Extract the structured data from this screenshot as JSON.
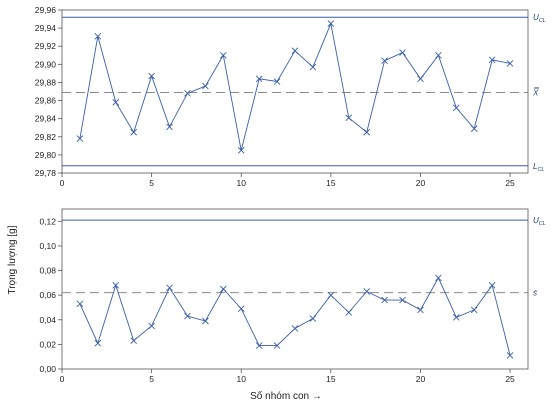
{
  "chart_data": [
    {
      "type": "line",
      "x": [
        1,
        2,
        3,
        4,
        5,
        6,
        7,
        8,
        9,
        10,
        11,
        12,
        13,
        14,
        15,
        16,
        17,
        18,
        19,
        20,
        21,
        22,
        23,
        24,
        25
      ],
      "series": [
        {
          "values": [
            29.818,
            29.931,
            29.858,
            29.825,
            29.887,
            29.831,
            29.868,
            29.876,
            29.91,
            29.805,
            29.884,
            29.881,
            29.915,
            29.897,
            29.945,
            29.841,
            29.825,
            29.904,
            29.913,
            29.884,
            29.91,
            29.852,
            29.829,
            29.905,
            29.901
          ]
        }
      ],
      "limits": [
        {
          "value": 29.952,
          "label": "U",
          "sub": "CL",
          "style": "solid"
        },
        {
          "value": 29.869,
          "label": "X̿",
          "sub": "",
          "style": "dashed"
        },
        {
          "value": 29.788,
          "label": "L",
          "sub": "CL",
          "style": "solid"
        }
      ],
      "xlim": [
        0,
        26
      ],
      "ylim": [
        29.78,
        29.96
      ],
      "xticks": [
        "0",
        "5",
        "10",
        "15",
        "20",
        "25"
      ],
      "yticks": [
        "29,78",
        "29,80",
        "29,82",
        "29,84",
        "29,86",
        "29,88",
        "29,90",
        "29,92",
        "29,94",
        "29,96"
      ],
      "grid": false
    },
    {
      "type": "line",
      "x": [
        1,
        2,
        3,
        4,
        5,
        6,
        7,
        8,
        9,
        10,
        11,
        12,
        13,
        14,
        15,
        16,
        17,
        18,
        19,
        20,
        21,
        22,
        23,
        24,
        25
      ],
      "series": [
        {
          "values": [
            0.053,
            0.021,
            0.068,
            0.023,
            0.035,
            0.066,
            0.043,
            0.039,
            0.065,
            0.049,
            0.019,
            0.019,
            0.033,
            0.041,
            0.06,
            0.046,
            0.063,
            0.056,
            0.056,
            0.048,
            0.074,
            0.042,
            0.048,
            0.068,
            0.011
          ]
        }
      ],
      "limits": [
        {
          "value": 0.121,
          "label": "U",
          "sub": "CL",
          "style": "solid"
        },
        {
          "value": 0.062,
          "label": "s̄",
          "sub": "",
          "style": "dashed"
        }
      ],
      "xlim": [
        0,
        26
      ],
      "ylim": [
        0,
        0.13
      ],
      "xticks": [
        "0",
        "5",
        "10",
        "15",
        "20",
        "25"
      ],
      "yticks": [
        "0,00",
        "0,02",
        "0,04",
        "0,06",
        "0,08",
        "0,10",
        "0,12"
      ],
      "grid": false
    }
  ],
  "labels": {
    "ylabel": "Trọng lượng [g]",
    "xlabel": "Số nhóm con →"
  },
  "colors": {
    "line": "#3a5fa8",
    "limit": "#3a5fa8",
    "center": "#7a7a7a"
  }
}
